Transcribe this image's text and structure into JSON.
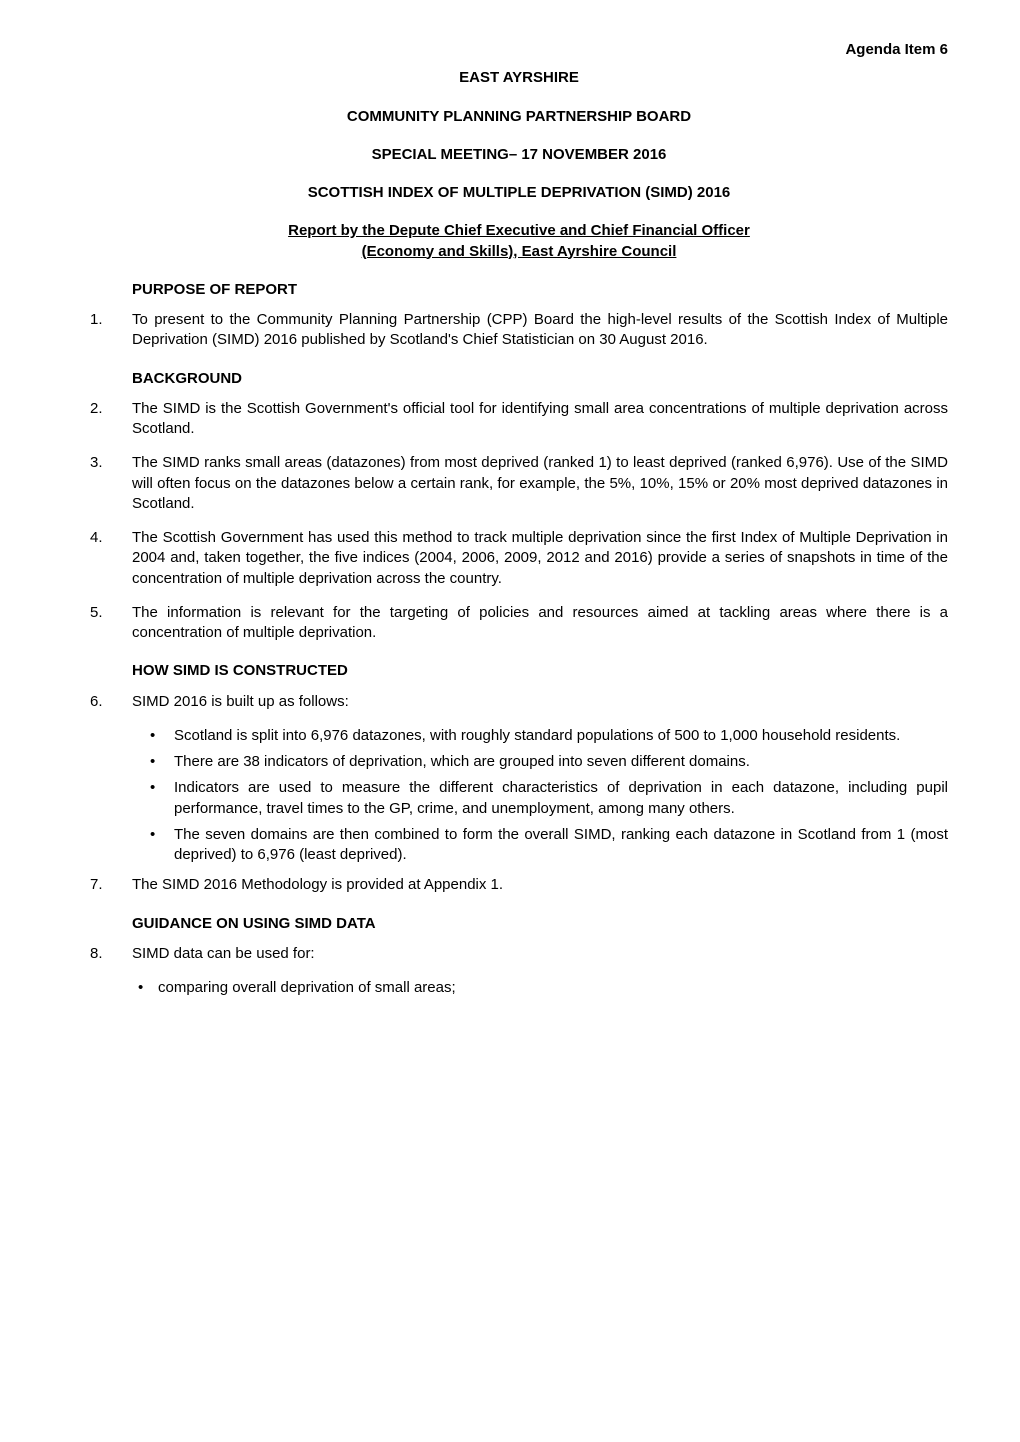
{
  "header": {
    "agenda_label": "Agenda Item 6",
    "org_name": "EAST AYRSHIRE",
    "board_name": "COMMUNITY PLANNING PARTNERSHIP BOARD",
    "meeting_title": "SPECIAL MEETING– 17 NOVEMBER 2016",
    "report_title": "SCOTTISH INDEX OF MULTIPLE DEPRIVATION (SIMD) 2016",
    "subtitle_line1": "Report by the Depute Chief Executive and Chief Financial Officer",
    "subtitle_line2": "(Economy and Skills), East Ayrshire Council"
  },
  "sections": {
    "purpose": {
      "title": "PURPOSE OF REPORT",
      "items": [
        {
          "num": "1.",
          "text": "To present to the Community Planning Partnership (CPP) Board the high-level results of the Scottish Index of Multiple Deprivation (SIMD) 2016 published by Scotland's Chief Statistician on 30 August 2016."
        }
      ]
    },
    "background": {
      "title": "BACKGROUND",
      "items": [
        {
          "num": "2.",
          "text": "The SIMD is the Scottish Government's official tool for identifying small area concentrations of multiple deprivation across Scotland."
        },
        {
          "num": "3.",
          "text": "The SIMD ranks small areas (datazones) from most deprived (ranked 1) to least deprived (ranked 6,976). Use of the SIMD will often focus on the datazones below a certain rank, for example, the 5%, 10%, 15% or 20% most deprived datazones in Scotland."
        },
        {
          "num": "4.",
          "text": "The Scottish Government has used this method to track multiple deprivation since the first Index of Multiple Deprivation in 2004 and, taken together, the five indices (2004, 2006, 2009, 2012 and 2016) provide a series of snapshots in time of the concentration of multiple deprivation across the country."
        },
        {
          "num": "5.",
          "text": "The information is relevant for the targeting of policies and resources aimed at tackling areas where there is a concentration of multiple deprivation."
        }
      ]
    },
    "construction": {
      "title": "HOW SIMD IS CONSTRUCTED",
      "intro": {
        "num": "6.",
        "text": "SIMD 2016 is built up as follows:"
      },
      "bullets": [
        "Scotland is split into 6,976 datazones, with roughly standard populations of 500 to 1,000 household residents.",
        "There are 38 indicators of deprivation, which are grouped into seven different domains.",
        "Indicators are used to measure the different characteristics of deprivation in each datazone, including pupil performance, travel times to the GP, crime, and unemployment, among many others.",
        "The seven domains are then combined to form the overall SIMD, ranking each datazone in Scotland from 1 (most deprived) to 6,976 (least deprived)."
      ],
      "closing": {
        "num": "7.",
        "text": "The SIMD 2016 Methodology is provided at Appendix 1."
      }
    },
    "guidance": {
      "title": "GUIDANCE ON USING SIMD DATA",
      "intro": {
        "num": "8.",
        "text": "SIMD data can be used for:"
      },
      "bullets": [
        "comparing overall deprivation of small areas;"
      ]
    }
  }
}
